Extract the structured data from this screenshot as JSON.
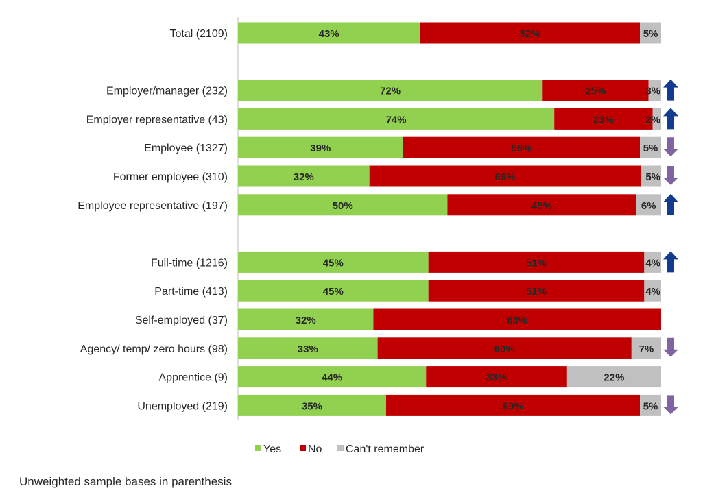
{
  "chart_data": {
    "type": "bar",
    "orientation": "horizontal",
    "stacked": true,
    "categories": [
      "Total (2109)",
      "Employer/manager (232)",
      "Employer representative (43)",
      "Employee (1327)",
      "Former employee (310)",
      "Employee representative (197)",
      "Full-time (1216)",
      "Part-time (413)",
      "Self-employed (37)",
      "Agency/ temp/ zero hours (98)",
      "Apprentice (9)",
      "Unemployed (219)"
    ],
    "groups": [
      [
        0
      ],
      [
        1,
        2,
        3,
        4,
        5
      ],
      [
        6,
        7,
        8,
        9,
        10,
        11
      ]
    ],
    "series": [
      {
        "name": "Yes",
        "color": "#92d050",
        "values": [
          43,
          72,
          74,
          39,
          32,
          50,
          45,
          45,
          32,
          33,
          44,
          35
        ]
      },
      {
        "name": "No",
        "color": "#c00000",
        "values": [
          52,
          25,
          23,
          56,
          66,
          45,
          51,
          51,
          68,
          60,
          33,
          60
        ]
      },
      {
        "name": "Can't remember",
        "color": "#c0c0c0",
        "values": [
          5,
          3,
          2,
          5,
          5,
          6,
          4,
          4,
          null,
          7,
          22,
          5
        ]
      }
    ],
    "significance": [
      null,
      "up",
      "up",
      "down",
      "down",
      "up",
      "up",
      null,
      null,
      "down",
      null,
      "down"
    ],
    "arrow_colors": {
      "up": "#133c8e",
      "down": "#8064a2"
    },
    "value_suffix": "%",
    "legend_position": "bottom",
    "grid": false
  },
  "footnote": "Unweighted sample bases in parenthesis"
}
